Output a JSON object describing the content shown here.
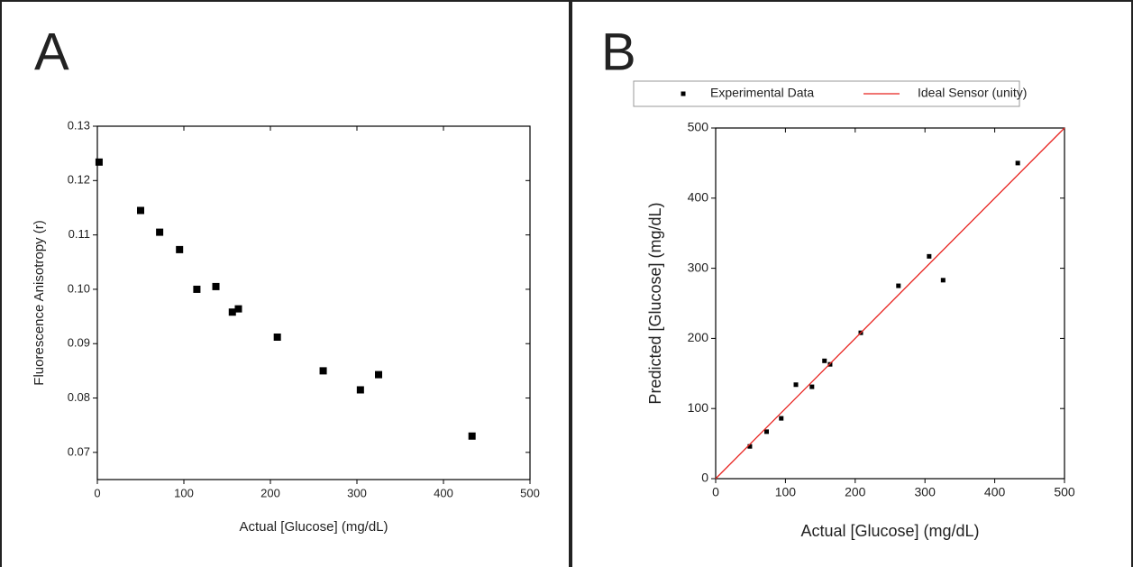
{
  "chart_data": [
    {
      "type": "scatter",
      "panel_label": "A",
      "x_label": "Actual [Glucose] (mg/dL)",
      "y_label": "Fluorescence Anisotropy (r)",
      "x": [
        2,
        50,
        72,
        95,
        115,
        137,
        156,
        163,
        208,
        261,
        304,
        325,
        433
      ],
      "values": [
        0.1234,
        0.1145,
        0.1105,
        0.1073,
        0.1,
        0.1005,
        0.0958,
        0.0964,
        0.0912,
        0.085,
        0.0815,
        0.0843,
        0.073
      ],
      "color": "#000000",
      "xlim": [
        0,
        500
      ],
      "xticks": [
        0,
        100,
        200,
        300,
        400,
        500
      ],
      "ylim": [
        0.065,
        0.13
      ],
      "yticks": [
        0.07,
        0.08,
        0.09,
        {
          "value": 0.1,
          "label": "0.10"
        },
        0.11,
        0.12,
        0.13
      ]
    },
    {
      "type": "scatter",
      "panel_label": "B",
      "x_label": "Actual [Glucose] (mg/dL)",
      "y_label": "Predicted [Glucose] (mg/dL)",
      "series": [
        {
          "name": "Experimental Data",
          "color": "#000000",
          "style": "markers",
          "x": [
            49,
            73,
            94,
            115,
            138,
            156,
            164,
            208,
            262,
            306,
            326,
            433
          ],
          "values": [
            46,
            67,
            86,
            134,
            131,
            168,
            163,
            208,
            275,
            317,
            283,
            450
          ]
        },
        {
          "name": "Ideal Sensor (unity)",
          "color": "#e8231f",
          "style": "line",
          "x": [
            0,
            500
          ],
          "values": [
            0,
            500
          ]
        }
      ],
      "xlim": [
        0,
        500
      ],
      "xticks": [
        0,
        100,
        200,
        300,
        400,
        500
      ],
      "ylim": [
        0,
        500
      ],
      "yticks": [
        0,
        100,
        200,
        300,
        400,
        500
      ]
    }
  ]
}
